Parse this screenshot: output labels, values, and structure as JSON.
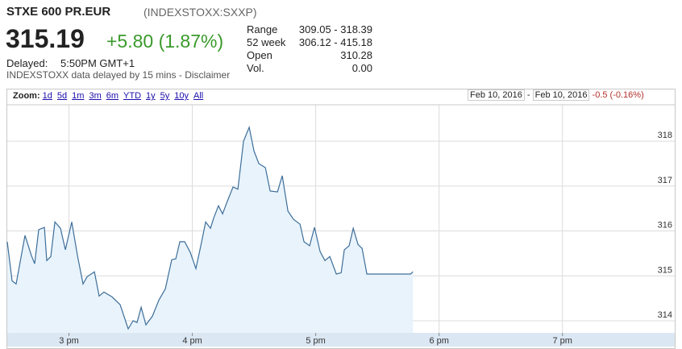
{
  "header": {
    "title": "STXE 600 PR.EUR",
    "ticker": "(INDEXSTOXX:SXXP)",
    "price": "315.19",
    "change": "+5.80 (1.87%)",
    "delayed_label": "Delayed:",
    "delayed_time": "5:50PM GMT+1",
    "note": "INDEXSTOXX data delayed by 15 mins - Disclaimer"
  },
  "stats": [
    {
      "label": "Range",
      "value": "309.05 - 318.39"
    },
    {
      "label": "52 week",
      "value": "306.12 - 415.18"
    },
    {
      "label": "Open",
      "value": "310.28"
    },
    {
      "label": "Vol.",
      "value": "0.00"
    }
  ],
  "toolbar": {
    "zoom_label": "Zoom:",
    "zooms": [
      "1d",
      "5d",
      "1m",
      "3m",
      "6m",
      "YTD",
      "1y",
      "5y",
      "10y",
      "All"
    ],
    "date_from": "Feb 10, 2016",
    "separator": "-",
    "date_to": "Feb 10, 2016",
    "period_change": "-0.5 (-0.16%)"
  },
  "chart_data": {
    "type": "line",
    "color": "#3d6e99",
    "area_color": "#e8f3fc",
    "grid": true,
    "x": [
      14.5,
      14.539,
      14.572,
      14.644,
      14.696,
      14.722,
      14.755,
      14.801,
      14.82,
      14.853,
      14.886,
      14.931,
      14.971,
      15.023,
      15.069,
      15.114,
      15.147,
      15.206,
      15.245,
      15.284,
      15.35,
      15.415,
      15.48,
      15.52,
      15.552,
      15.585,
      15.624,
      15.676,
      15.729,
      15.781,
      15.833,
      15.866,
      15.899,
      15.938,
      15.984,
      16.029,
      16.069,
      16.108,
      16.147,
      16.173,
      16.212,
      16.245,
      16.278,
      16.33,
      16.369,
      16.415,
      16.461,
      16.5,
      16.539,
      16.592,
      16.631,
      16.69,
      16.729,
      16.775,
      16.82,
      16.873,
      16.905,
      16.951,
      16.99,
      17.036,
      17.075,
      17.114,
      17.167,
      17.206,
      17.232,
      17.271,
      17.304,
      17.343,
      17.376,
      17.415,
      17.768,
      17.788
    ],
    "series": [
      {
        "name": "STXE 600 PR.EUR",
        "values": [
          315.76,
          314.89,
          314.82,
          315.9,
          315.45,
          315.27,
          316.03,
          316.08,
          315.34,
          315.43,
          316.2,
          316.06,
          315.58,
          316.2,
          315.45,
          314.82,
          314.98,
          315.09,
          314.55,
          314.64,
          314.53,
          314.36,
          313.82,
          314.0,
          313.96,
          314.3,
          313.91,
          314.1,
          314.46,
          314.71,
          315.36,
          315.38,
          315.76,
          315.76,
          315.52,
          315.16,
          315.67,
          316.2,
          316.06,
          316.29,
          316.56,
          316.38,
          316.62,
          316.98,
          316.93,
          318.0,
          318.31,
          317.78,
          317.5,
          317.41,
          316.89,
          316.87,
          317.23,
          316.44,
          316.26,
          316.15,
          315.76,
          315.67,
          316.08,
          315.54,
          315.34,
          315.43,
          315.04,
          315.07,
          315.58,
          315.67,
          316.06,
          315.7,
          315.61,
          315.04,
          315.04,
          315.09
        ]
      }
    ],
    "xlim": [
      14.5,
      19.91
    ],
    "ylim": [
      313.73,
      318.81
    ],
    "xticks": [
      {
        "value": 15,
        "label": "3 pm"
      },
      {
        "value": 16,
        "label": "4 pm"
      },
      {
        "value": 17,
        "label": "5 pm"
      },
      {
        "value": 18,
        "label": "6 pm"
      },
      {
        "value": 19,
        "label": "7 pm"
      }
    ],
    "yticks": [
      314,
      315,
      316,
      317,
      318
    ]
  }
}
